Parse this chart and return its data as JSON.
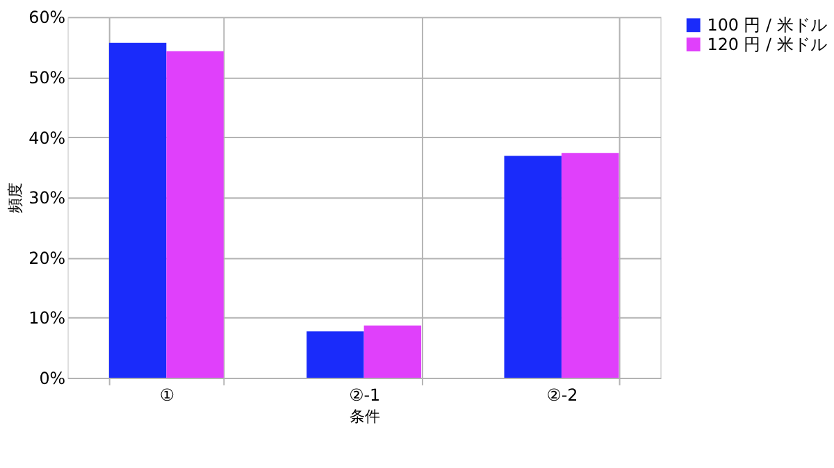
{
  "chart_data": {
    "type": "bar",
    "xlabel": "条件",
    "ylabel": "頻度",
    "categories": [
      "①",
      "②-1",
      "②-2"
    ],
    "series": [
      {
        "name": "100 円 / 米ドル",
        "color": "#1a2bfa",
        "values": [
          55.7,
          7.7,
          36.9
        ]
      },
      {
        "name": "120 円 / 米ドル",
        "color": "#e040fb",
        "values": [
          54.3,
          8.7,
          37.4
        ]
      }
    ],
    "ylim": [
      0,
      60
    ],
    "yticks": [
      {
        "value": 0,
        "label": "0%"
      },
      {
        "value": 10,
        "label": "10%"
      },
      {
        "value": 20,
        "label": "20%"
      },
      {
        "value": 30,
        "label": "30%"
      },
      {
        "value": 40,
        "label": "40%"
      },
      {
        "value": 50,
        "label": "50%"
      },
      {
        "value": 60,
        "label": "60%"
      }
    ],
    "grid": true,
    "legend": "right"
  }
}
